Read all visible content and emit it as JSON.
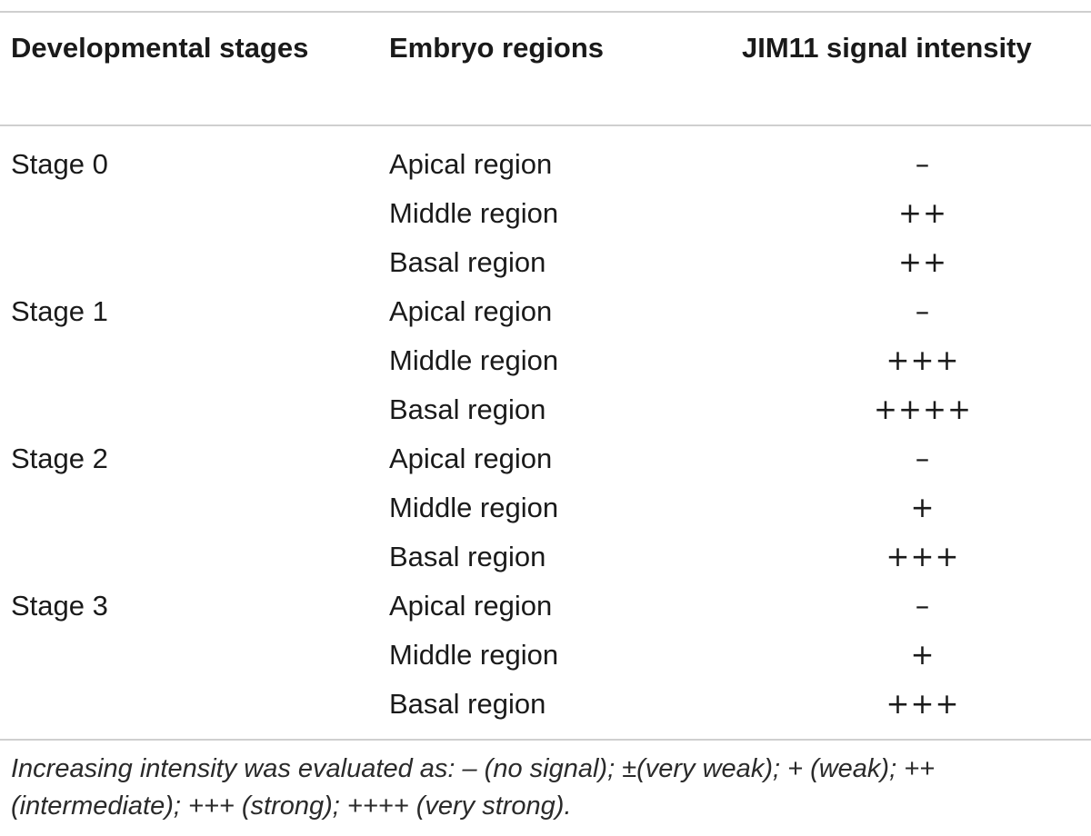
{
  "table": {
    "headers": {
      "stage": "Developmental stages",
      "region": "Embryo regions",
      "intensity": "JIM11 signal intensity"
    },
    "rows": [
      {
        "stage": "Stage 0",
        "region": "Apical region",
        "intensity": "–"
      },
      {
        "stage": "",
        "region": "Middle region",
        "intensity": "++"
      },
      {
        "stage": "",
        "region": "Basal region",
        "intensity": "++"
      },
      {
        "stage": "Stage 1",
        "region": "Apical region",
        "intensity": "–"
      },
      {
        "stage": "",
        "region": "Middle region",
        "intensity": "+++"
      },
      {
        "stage": "",
        "region": "Basal region",
        "intensity": "++++"
      },
      {
        "stage": "Stage 2",
        "region": "Apical region",
        "intensity": "–"
      },
      {
        "stage": "",
        "region": "Middle region",
        "intensity": "+"
      },
      {
        "stage": "",
        "region": "Basal region",
        "intensity": "+++"
      },
      {
        "stage": "Stage 3",
        "region": "Apical region",
        "intensity": "–"
      },
      {
        "stage": "",
        "region": "Middle region",
        "intensity": "+"
      },
      {
        "stage": "",
        "region": "Basal region",
        "intensity": "+++"
      }
    ],
    "footnote": "Increasing intensity was evaluated as: – (no signal); ±(very weak); + (weak); ++ (intermediate); +++ (strong); ++++ (very strong)."
  }
}
